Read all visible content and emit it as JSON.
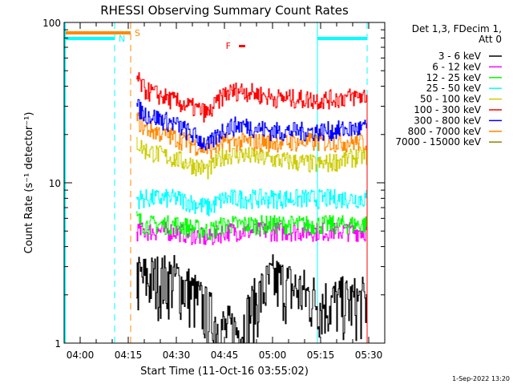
{
  "chart_data": {
    "type": "line",
    "title": "RHESSI Observing Summary Count Rates",
    "xlabel": "Start Time (11-Oct-16 03:55:02)",
    "ylabel": "Count Rate (s⁻¹ detector⁻¹)",
    "yscale": "log",
    "ylim": [
      1,
      100
    ],
    "xlim": [
      "03:55",
      "05:35"
    ],
    "x_ticks": [
      "04:00",
      "04:15",
      "04:30",
      "04:45",
      "05:00",
      "05:15",
      "05:30"
    ],
    "y_ticks": [
      "1",
      "10",
      "100"
    ],
    "legend_title": [
      "Det 1,3, FDecim 1,",
      "Att 0"
    ],
    "legend_placement": "right",
    "key_times": [
      "04:17:30",
      "04:20",
      "04:30",
      "04:40",
      "04:45",
      "04:50",
      "05:00",
      "05:15",
      "05:29:30"
    ],
    "series": [
      {
        "name": "3 - 6 keV",
        "color": "#000000",
        "values": [
          2.5,
          2.5,
          2.5,
          1.5,
          1.2,
          1.2,
          2.5,
          1.8,
          1.8
        ]
      },
      {
        "name": "6 - 12 keV",
        "color": "#ff00ff",
        "values": [
          5,
          5,
          5,
          4.5,
          5,
          5,
          5,
          5,
          5
        ]
      },
      {
        "name": "12 - 25 keV",
        "color": "#00ff00",
        "values": [
          6,
          5.5,
          5.5,
          5,
          5.5,
          5.5,
          5.5,
          5.5,
          5.5
        ]
      },
      {
        "name": "25 - 50 keV",
        "color": "#00ffff",
        "values": [
          8,
          8,
          8,
          7,
          8,
          8,
          8,
          8,
          8
        ]
      },
      {
        "name": "50 - 100 keV",
        "color": "#cccc00",
        "values": [
          18,
          16,
          14,
          12,
          15,
          15,
          14,
          13,
          15
        ]
      },
      {
        "name": "100 - 300 keV",
        "color": "#ff0000",
        "values": [
          45,
          38,
          32,
          27,
          36,
          38,
          34,
          33,
          35
        ]
      },
      {
        "name": "300 - 800 keV",
        "color": "#0000ff",
        "values": [
          30,
          27,
          23,
          17,
          22,
          23,
          21,
          21,
          22
        ]
      },
      {
        "name": "800 - 7000 keV",
        "color": "#ff8800",
        "values": [
          25,
          22,
          19,
          16,
          18,
          18,
          18,
          18,
          18
        ]
      },
      {
        "name": "7000 - 15000 keV",
        "color": "#888800",
        "values": [
          1,
          1,
          1,
          1,
          1,
          1,
          1,
          1,
          1
        ]
      }
    ],
    "annotations": [
      {
        "label": "S",
        "color": "#ff8800",
        "from": "03:55",
        "to": "04:15:45"
      },
      {
        "label": "N",
        "color": "#00ffff",
        "from": "03:55",
        "to": "04:10:45"
      },
      {
        "label": "",
        "color": "#00ffff",
        "from": "05:14",
        "to": "05:29:30"
      },
      {
        "label": "F",
        "color": "#ff0000",
        "from": "04:48",
        "to": "04:50"
      }
    ]
  },
  "footer": {
    "timestamp": "1-Sep-2022 13:20"
  }
}
